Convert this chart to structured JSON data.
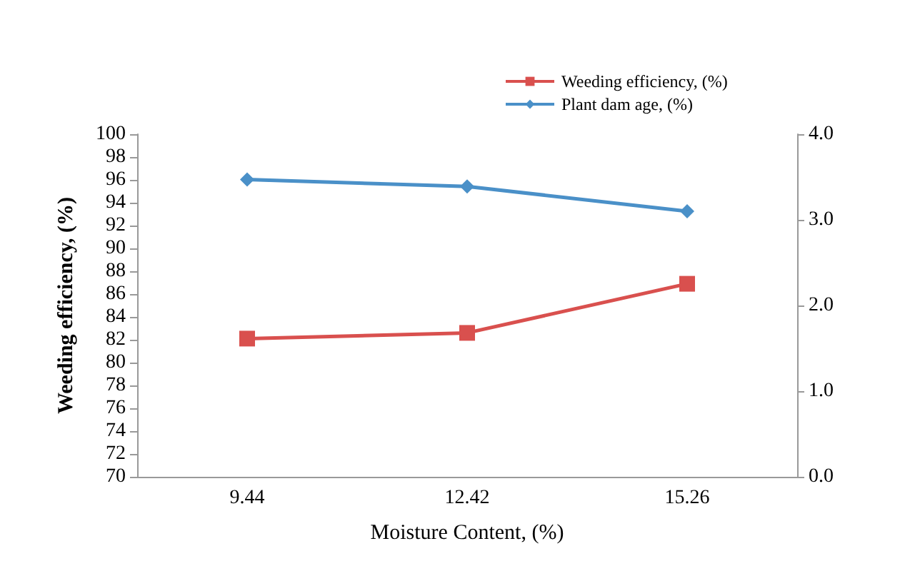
{
  "chart_data": {
    "type": "line",
    "xlabel": "Moisture Content, (%)",
    "ylabel": "Weeding efficiency, (%)",
    "categories": [
      "9.44",
      "12.42",
      "15.26"
    ],
    "series": [
      {
        "name": "Weeding efficiency, (%)",
        "color": "#d9504e",
        "values": [
          82.1,
          82.6,
          86.9
        ],
        "marker": "square"
      },
      {
        "name": "Plant dam age, (%)",
        "color": "#4a90c8",
        "values": [
          3.47,
          3.39,
          3.1
        ],
        "marker": "diamond",
        "axis": "y2"
      }
    ],
    "ylim": [
      70,
      100
    ],
    "yticks": [
      70,
      72,
      74,
      76,
      78,
      80,
      82,
      84,
      86,
      88,
      90,
      92,
      94,
      96,
      98,
      100
    ],
    "y2lim": [
      0,
      4
    ],
    "y2ticks": [
      {
        "value": 0,
        "label": "0.0"
      },
      {
        "value": 1,
        "label": "1.0"
      },
      {
        "value": 2,
        "label": "2.0"
      },
      {
        "value": 3,
        "label": "3.0"
      },
      {
        "value": 4,
        "label": "4.0"
      }
    ],
    "grid": false,
    "legend": "top right"
  }
}
